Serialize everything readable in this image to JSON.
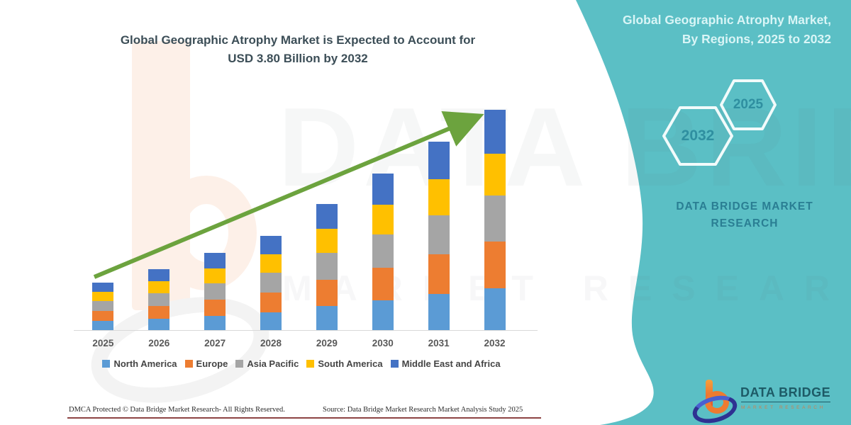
{
  "main": {
    "title_line1": "Global Geographic Atrophy Market is Expected to Account for",
    "title_line2": "USD 3.80 Billion by 2032"
  },
  "chart_data": {
    "type": "bar",
    "stacked": true,
    "title": "Global Geographic Atrophy Market is Expected to Account for USD 3.80 Billion by 2032",
    "unit": "USD Billion",
    "categories": [
      "2025",
      "2026",
      "2027",
      "2028",
      "2029",
      "2030",
      "2031",
      "2032"
    ],
    "series": [
      {
        "name": "North America",
        "color": "#5B9BD5",
        "values": [
          0.16,
          0.2,
          0.25,
          0.31,
          0.41,
          0.51,
          0.62,
          0.72
        ]
      },
      {
        "name": "Europe",
        "color": "#ED7D31",
        "values": [
          0.17,
          0.22,
          0.28,
          0.34,
          0.46,
          0.57,
          0.68,
          0.8
        ]
      },
      {
        "name": "Asia Pacific",
        "color": "#A5A5A5",
        "values": [
          0.17,
          0.22,
          0.28,
          0.34,
          0.46,
          0.57,
          0.68,
          0.8
        ]
      },
      {
        "name": "South America",
        "color": "#FFC000",
        "values": [
          0.16,
          0.2,
          0.25,
          0.31,
          0.41,
          0.51,
          0.62,
          0.72
        ]
      },
      {
        "name": "Middle East and Africa",
        "color": "#4472C4",
        "values": [
          0.16,
          0.21,
          0.27,
          0.32,
          0.43,
          0.54,
          0.65,
          0.76
        ]
      }
    ],
    "totals": [
      0.82,
      1.05,
      1.33,
      1.62,
      2.17,
      2.7,
      3.25,
      3.8
    ],
    "ylim": [
      0,
      3.9
    ],
    "axes_visible": false,
    "gridlines": false,
    "legend_position": "bottom",
    "trend_arrow": true
  },
  "side_panel": {
    "title_line1": "Global Geographic Atrophy Market,",
    "title_line2": "By Regions, 2025 to 2032",
    "hexagons": [
      {
        "label": "2032"
      },
      {
        "label": "2025"
      }
    ],
    "brand_line1": "DATA BRIDGE MARKET",
    "brand_line2": "RESEARCH"
  },
  "footer": {
    "dmca": "DMCA Protected © Data Bridge Market Research- All Rights Reserved.",
    "source": "Source: Data Bridge Market Research Market Analysis Study 2025"
  },
  "logo": {
    "name": "DATA BRIDGE",
    "subtitle": "MARKET RESEARCH"
  },
  "watermark": {
    "line1": "DATA BRIDGE",
    "line2": "MARKET RESEARCH"
  },
  "colors": {
    "panel_teal": "#5BBFC5",
    "arrow_green": "#6CA33E",
    "title_text": "#3C4E57",
    "hex_label": "#2F8FA0",
    "footer_rule": "#8D4444"
  }
}
